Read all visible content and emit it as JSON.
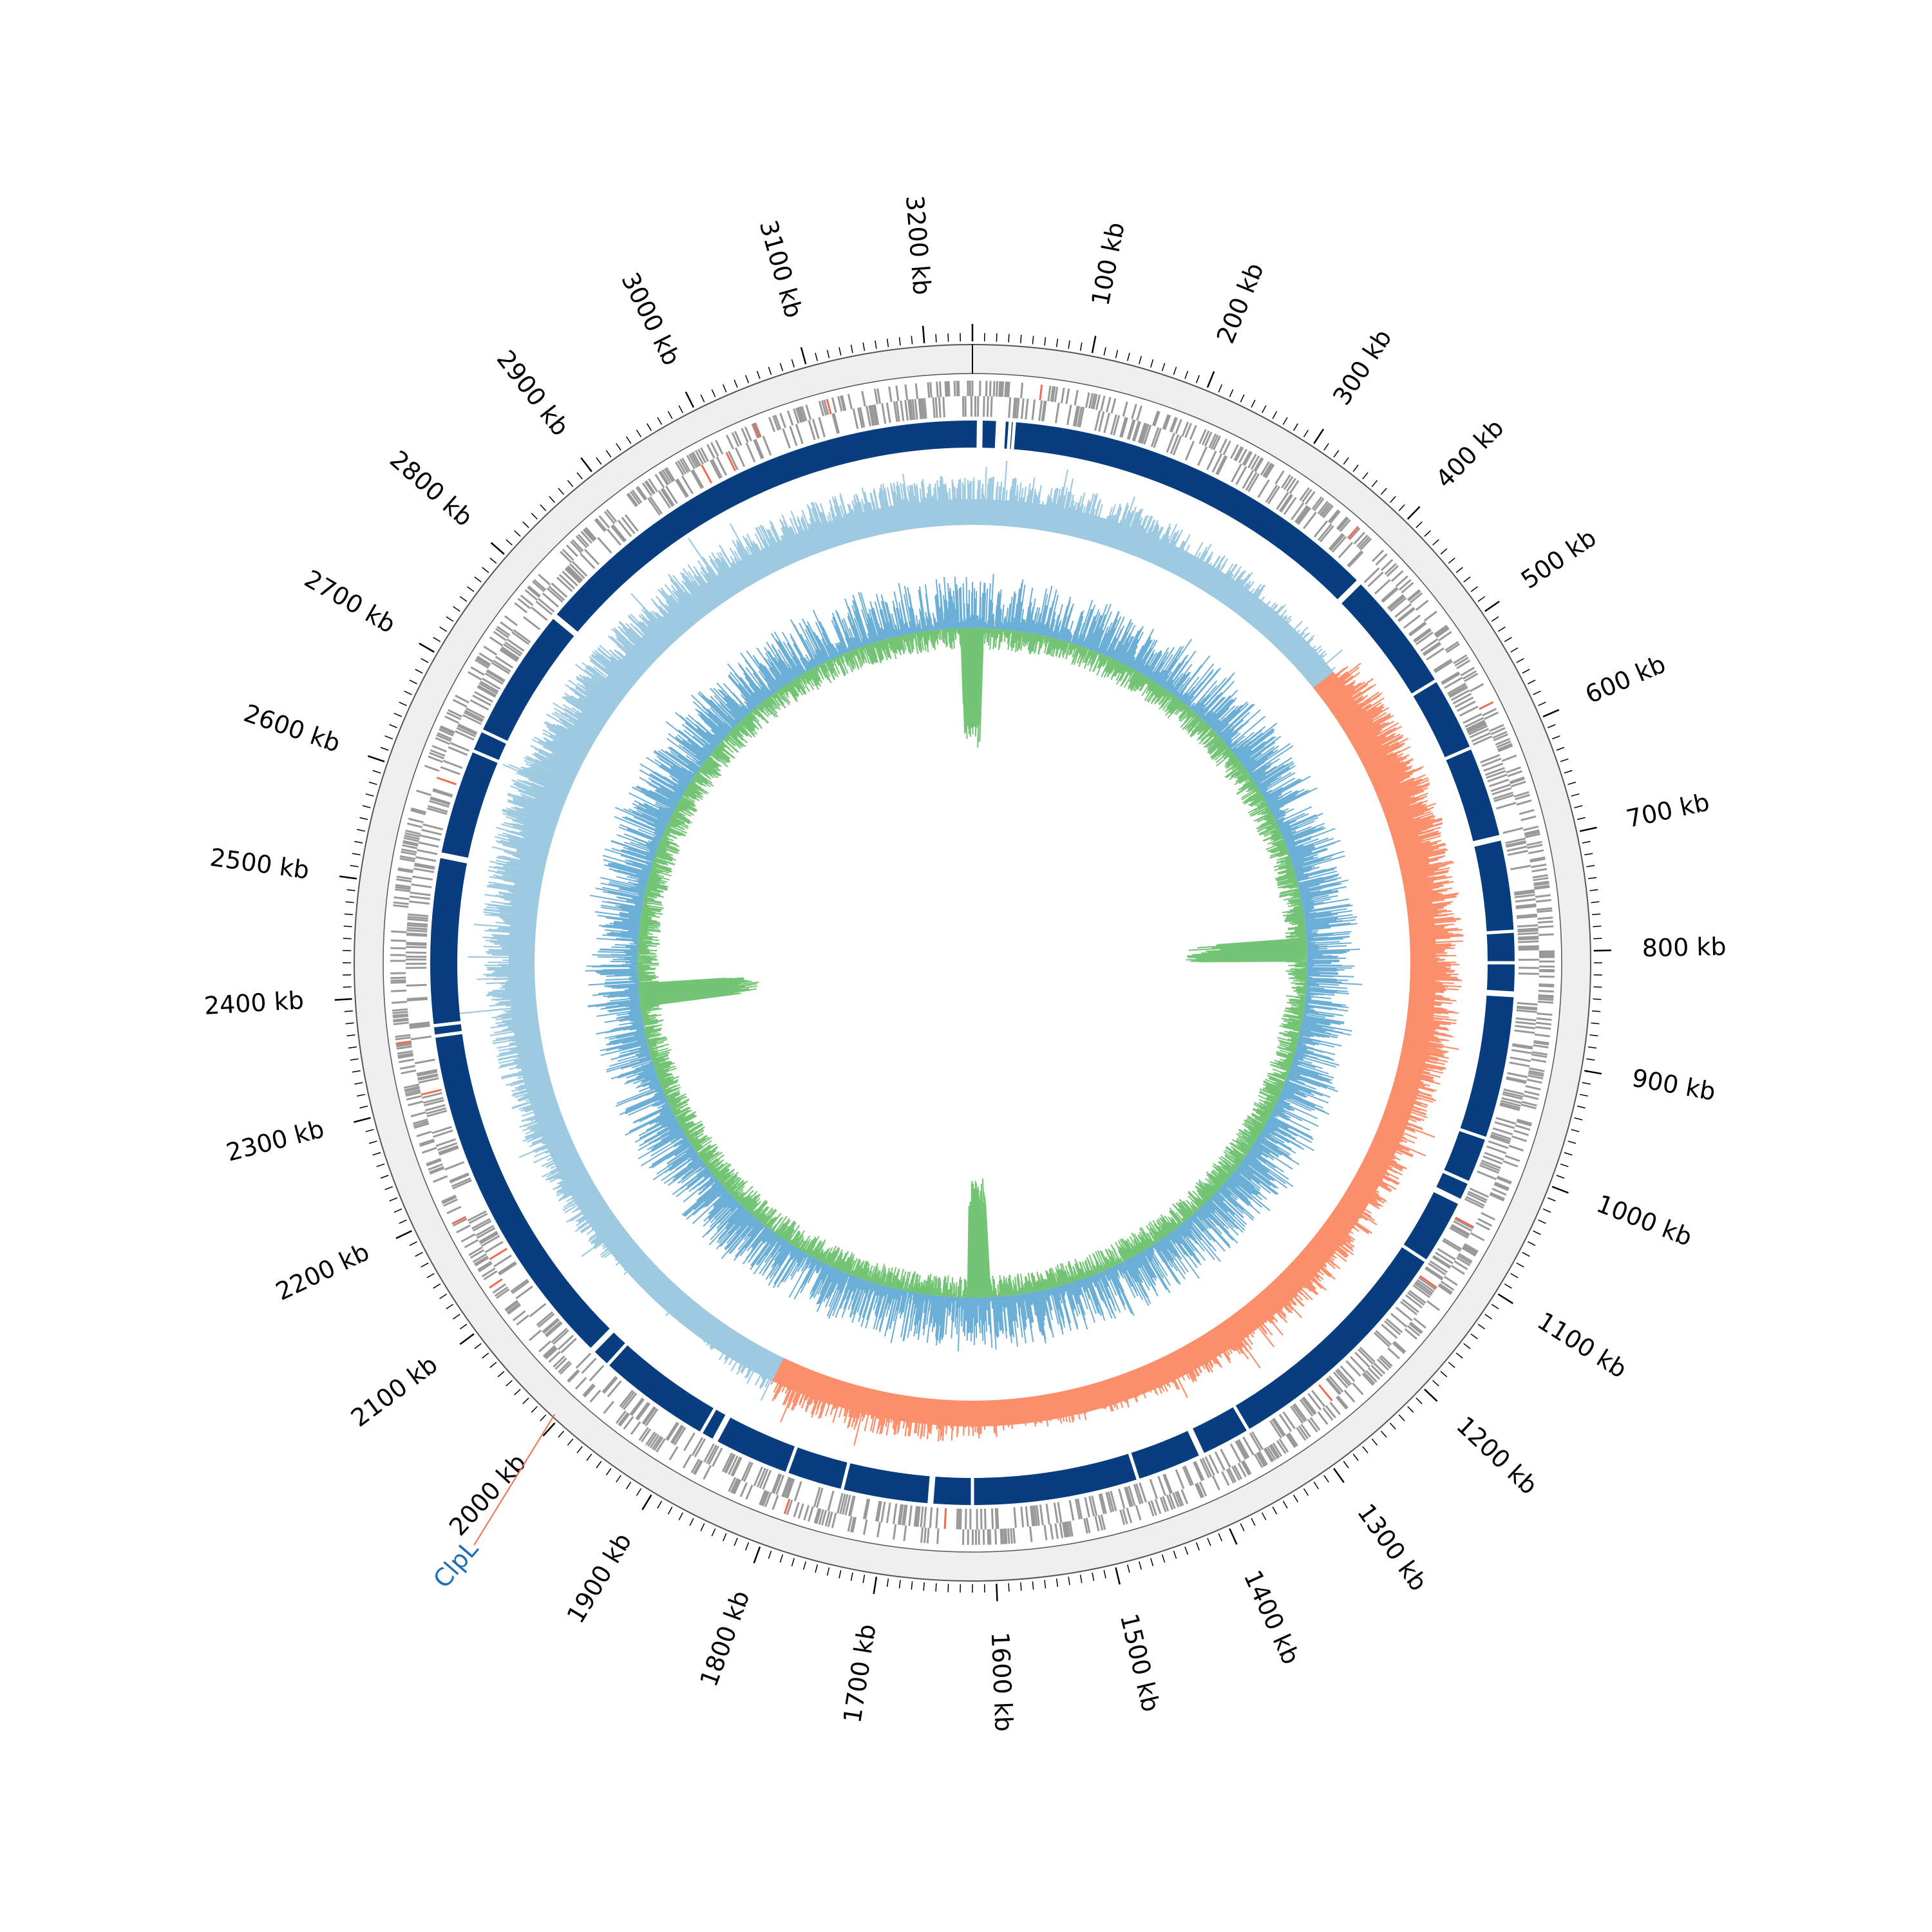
{
  "chart_data": {
    "type": "circular-genome-map",
    "genome_length_kb": 3240,
    "origin_angle_deg": 0,
    "axis": {
      "unit": "kb",
      "major_step_kb": 100,
      "minor_step_kb": 10,
      "tick_labels": [
        "3200 kb",
        "100 kb",
        "200 kb",
        "300 kb",
        "400 kb",
        "500 kb",
        "600 kb",
        "700 kb",
        "800 kb",
        "900 kb",
        "1000 kb",
        "1100 kb",
        "1200 kb",
        "1300 kb",
        "1400 kb",
        "1500 kb",
        "1600 kb",
        "1700 kb",
        "1800 kb",
        "1900 kb",
        "2000 kb",
        "2100 kb",
        "2200 kb",
        "2300 kb",
        "2400 kb",
        "2500 kb",
        "2600 kb",
        "2700 kb",
        "2800 kb",
        "2900 kb",
        "3000 kb",
        "3100 kb"
      ],
      "tick_positions_kb": [
        3200,
        100,
        200,
        300,
        400,
        500,
        600,
        700,
        800,
        900,
        1000,
        1100,
        1200,
        1300,
        1400,
        1500,
        1600,
        1700,
        1800,
        1900,
        2000,
        2100,
        2200,
        2300,
        2400,
        2500,
        2600,
        2700,
        2800,
        2900,
        3000,
        3100
      ]
    },
    "annotations": [
      {
        "label": "ClpL",
        "position_kb": 2005,
        "color": "#1f6fb5"
      }
    ],
    "tracks": {
      "feature_ring": {
        "color": "#999999",
        "highlight_color": "#f26b4e"
      },
      "contig_ring": {
        "color": "#083d7f",
        "gap_positions_kb": [
          7,
          24,
          27,
          29,
          36,
          40,
          409,
          528,
          600,
          690,
          780,
          810,
          840,
          980,
          1025,
          1045,
          1110,
          1345,
          1395,
          1460,
          1620,
          1660,
          1745,
          1800,
          1875,
          1890,
          2000,
          2020,
          2360,
          2370,
          2533,
          2637,
          2658,
          2787
        ]
      },
      "skew_ring": {
        "positive_color": "#9ecae1",
        "negative_color": "#fb8f6b",
        "negative_region_kb": [
          460,
          1850
        ],
        "profile_kb": [
          0,
          200,
          440,
          470,
          800,
          1000,
          1250,
          1580,
          1600,
          1850,
          2100,
          2600,
          3000,
          3240
        ],
        "profile_values": [
          0.62,
          0.58,
          0.35,
          -0.7,
          -0.7,
          -0.5,
          -0.45,
          -0.25,
          -0.45,
          -0.55,
          0.45,
          0.78,
          0.62,
          0.62
        ]
      },
      "content_ring": {
        "fill_color": "#a1d99b",
        "line_color": "#74c476",
        "spike_color": "#6baed6",
        "peak_positions_kb": [
          790,
          2380,
          1610,
          3240
        ]
      }
    }
  }
}
